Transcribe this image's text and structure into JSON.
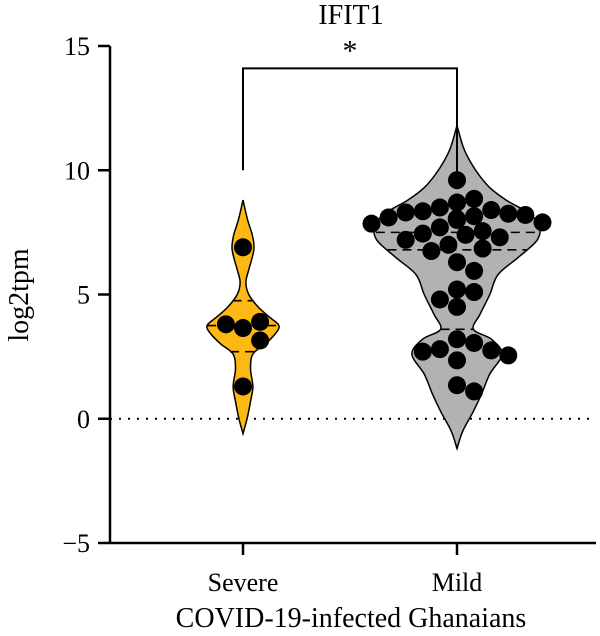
{
  "chart_data": {
    "type": "violin",
    "title": "IFIT1",
    "xlabel": "COVID-19-infected Ghanaians",
    "ylabel": "log2tpm",
    "ylim": [
      -5,
      15
    ],
    "yticks": [
      -5,
      0,
      5,
      10,
      15
    ],
    "ytick_labels": [
      "−5",
      "0",
      "5",
      "10",
      "15"
    ],
    "reference_line": 0,
    "significance": {
      "label": "*",
      "between": [
        "Severe",
        "Mild"
      ],
      "height": 14.1,
      "drop_to": 10.0
    },
    "groups": [
      {
        "name": "Severe",
        "color": "#fdb813",
        "range": [
          -0.6,
          8.8
        ],
        "quartiles": [
          2.7,
          3.75,
          4.75
        ],
        "points": [
          6.9,
          3.65,
          3.9,
          3.8,
          3.15,
          1.3
        ],
        "density": [
          [
            -0.6,
            0.0
          ],
          [
            0.0,
            0.07
          ],
          [
            0.7,
            0.13
          ],
          [
            1.3,
            0.17
          ],
          [
            2.0,
            0.13
          ],
          [
            2.6,
            0.17
          ],
          [
            3.0,
            0.38
          ],
          [
            3.4,
            0.55
          ],
          [
            3.75,
            0.62
          ],
          [
            4.1,
            0.45
          ],
          [
            4.5,
            0.26
          ],
          [
            5.0,
            0.1
          ],
          [
            5.5,
            0.05
          ],
          [
            6.0,
            0.1
          ],
          [
            6.5,
            0.16
          ],
          [
            6.9,
            0.19
          ],
          [
            7.4,
            0.16
          ],
          [
            8.0,
            0.08
          ],
          [
            8.8,
            0.0
          ]
        ]
      },
      {
        "name": "Mild",
        "color": "#b2b2b2",
        "range": [
          -1.2,
          11.8
        ],
        "quartiles": [
          3.6,
          6.8,
          7.5
        ],
        "points": [
          9.6,
          8.7,
          8.85,
          8.5,
          8.4,
          8.35,
          8.25,
          8.3,
          8.15,
          8.2,
          8.1,
          8.0,
          8.05,
          7.9,
          7.85,
          7.7,
          7.55,
          7.45,
          7.4,
          7.3,
          7.2,
          7.0,
          6.85,
          6.75,
          6.3,
          5.95,
          5.2,
          5.1,
          4.8,
          4.5,
          3.2,
          3.05,
          2.8,
          2.75,
          2.7,
          2.55,
          2.35,
          1.35,
          1.1
        ],
        "density": [
          [
            -1.2,
            0.0
          ],
          [
            -0.5,
            0.07
          ],
          [
            0.3,
            0.2
          ],
          [
            1.0,
            0.3
          ],
          [
            1.8,
            0.4
          ],
          [
            2.6,
            0.55
          ],
          [
            3.2,
            0.42
          ],
          [
            3.6,
            0.2
          ],
          [
            4.2,
            0.28
          ],
          [
            5.0,
            0.4
          ],
          [
            5.8,
            0.5
          ],
          [
            6.5,
            0.75
          ],
          [
            7.2,
            0.98
          ],
          [
            7.8,
            1.0
          ],
          [
            8.3,
            0.86
          ],
          [
            8.8,
            0.6
          ],
          [
            9.3,
            0.4
          ],
          [
            9.8,
            0.27
          ],
          [
            10.3,
            0.17
          ],
          [
            10.9,
            0.08
          ],
          [
            11.8,
            0.0
          ]
        ]
      }
    ]
  }
}
